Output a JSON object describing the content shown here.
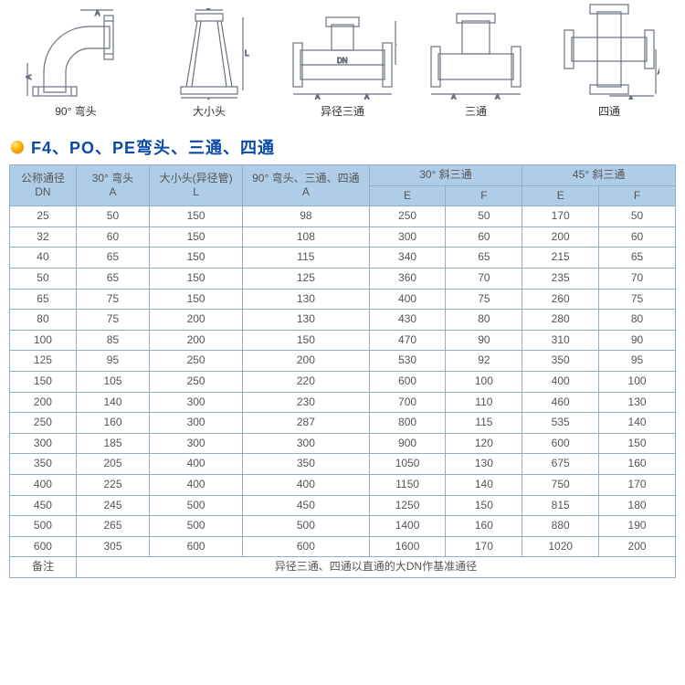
{
  "diagram_stroke": "#6b7280",
  "diagrams": [
    {
      "label": "90° 弯头"
    },
    {
      "label": "大小头"
    },
    {
      "label": "异径三通"
    },
    {
      "label": "三通"
    },
    {
      "label": "四通"
    }
  ],
  "section_title": "F4、PO、PE弯头、三通、四通",
  "title_color": "#0a4aa8",
  "table": {
    "header_bg": "#b0cde8",
    "border_color": "#8faecb",
    "group_headers": {
      "dn": {
        "line1": "公称通径",
        "line2": "DN"
      },
      "elbow": {
        "line1": "30° 弯头",
        "line2": "A"
      },
      "reducer": {
        "line1": "大小头(异径管)",
        "line2": "L"
      },
      "tee90": {
        "line1": "90° 弯头、三通、四通",
        "line2": "A"
      },
      "lat30": {
        "title": "30° 斜三通",
        "e": "E",
        "f": "F"
      },
      "lat45": {
        "title": "45° 斜三通",
        "e": "E",
        "f": "F"
      }
    },
    "rows": [
      {
        "dn": "25",
        "a30": "50",
        "l": "150",
        "a90": "98",
        "e30": "250",
        "f30": "50",
        "e45": "170",
        "f45": "50"
      },
      {
        "dn": "32",
        "a30": "60",
        "l": "150",
        "a90": "108",
        "e30": "300",
        "f30": "60",
        "e45": "200",
        "f45": "60"
      },
      {
        "dn": "40",
        "a30": "65",
        "l": "150",
        "a90": "115",
        "e30": "340",
        "f30": "65",
        "e45": "215",
        "f45": "65"
      },
      {
        "dn": "50",
        "a30": "65",
        "l": "150",
        "a90": "125",
        "e30": "360",
        "f30": "70",
        "e45": "235",
        "f45": "70"
      },
      {
        "dn": "65",
        "a30": "75",
        "l": "150",
        "a90": "130",
        "e30": "400",
        "f30": "75",
        "e45": "260",
        "f45": "75"
      },
      {
        "dn": "80",
        "a30": "75",
        "l": "200",
        "a90": "130",
        "e30": "430",
        "f30": "80",
        "e45": "280",
        "f45": "80"
      },
      {
        "dn": "100",
        "a30": "85",
        "l": "200",
        "a90": "150",
        "e30": "470",
        "f30": "90",
        "e45": "310",
        "f45": "90"
      },
      {
        "dn": "125",
        "a30": "95",
        "l": "250",
        "a90": "200",
        "e30": "530",
        "f30": "92",
        "e45": "350",
        "f45": "95"
      },
      {
        "dn": "150",
        "a30": "105",
        "l": "250",
        "a90": "220",
        "e30": "600",
        "f30": "100",
        "e45": "400",
        "f45": "100"
      },
      {
        "dn": "200",
        "a30": "140",
        "l": "300",
        "a90": "230",
        "e30": "700",
        "f30": "110",
        "e45": "460",
        "f45": "130"
      },
      {
        "dn": "250",
        "a30": "160",
        "l": "300",
        "a90": "287",
        "e30": "800",
        "f30": "115",
        "e45": "535",
        "f45": "140"
      },
      {
        "dn": "300",
        "a30": "185",
        "l": "300",
        "a90": "300",
        "e30": "900",
        "f30": "120",
        "e45": "600",
        "f45": "150"
      },
      {
        "dn": "350",
        "a30": "205",
        "l": "400",
        "a90": "350",
        "e30": "1050",
        "f30": "130",
        "e45": "675",
        "f45": "160"
      },
      {
        "dn": "400",
        "a30": "225",
        "l": "400",
        "a90": "400",
        "e30": "1150",
        "f30": "140",
        "e45": "750",
        "f45": "170"
      },
      {
        "dn": "450",
        "a30": "245",
        "l": "500",
        "a90": "450",
        "e30": "1250",
        "f30": "150",
        "e45": "815",
        "f45": "180"
      },
      {
        "dn": "500",
        "a30": "265",
        "l": "500",
        "a90": "500",
        "e30": "1400",
        "f30": "160",
        "e45": "880",
        "f45": "190"
      },
      {
        "dn": "600",
        "a30": "305",
        "l": "600",
        "a90": "600",
        "e30": "1600",
        "f30": "170",
        "e45": "1020",
        "f45": "200"
      }
    ],
    "footnote_label": "备注",
    "footnote_text": "异径三通、四通以直通的大DN作基准通径"
  }
}
